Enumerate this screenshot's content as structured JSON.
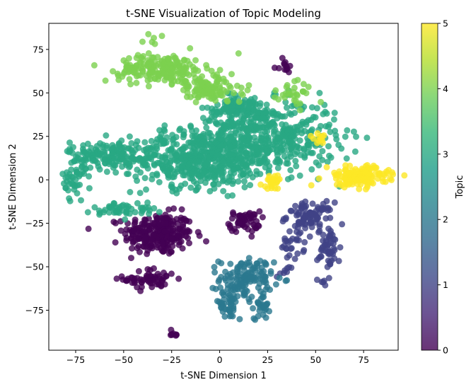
{
  "chart_data": {
    "type": "scatter",
    "title": "t-SNE Visualization of Topic Modeling",
    "xlabel": "t-SNE Dimension 1",
    "ylabel": "t-SNE Dimension 2",
    "xlim": [
      -89,
      93
    ],
    "ylim": [
      -98,
      90
    ],
    "xticks": [
      -75,
      -50,
      -25,
      0,
      25,
      50,
      75
    ],
    "yticks": [
      -75,
      -50,
      -25,
      0,
      25,
      50,
      75
    ],
    "grid": false,
    "colormap": "viridis",
    "point_alpha": 0.8,
    "colorbar": {
      "label": "Topic",
      "range": [
        0,
        5
      ],
      "ticks": [
        0,
        1,
        2,
        3,
        4,
        5
      ]
    },
    "clusters": [
      {
        "topic": 0,
        "center": [
          -32,
          -31
        ],
        "spread": [
          9,
          6
        ],
        "count": 260
      },
      {
        "topic": 0,
        "center": [
          -36,
          -57
        ],
        "spread": [
          7,
          3
        ],
        "count": 60
      },
      {
        "topic": 0,
        "center": [
          -24,
          -89
        ],
        "spread": [
          1.5,
          1.5
        ],
        "count": 8
      },
      {
        "topic": 0,
        "center": [
          13,
          -24
        ],
        "spread": [
          4,
          3
        ],
        "count": 55
      },
      {
        "topic": 0,
        "center": [
          33,
          65
        ],
        "spread": [
          2.5,
          2
        ],
        "count": 12
      },
      {
        "topic": 1,
        "center": [
          47,
          -21
        ],
        "spread": [
          6,
          4
        ],
        "count": 90
      },
      {
        "topic": 1,
        "center": [
          57,
          -40
        ],
        "spread": [
          3,
          6
        ],
        "count": 50
      },
      {
        "topic": 1,
        "center": [
          38,
          -38
        ],
        "spread": [
          3,
          4
        ],
        "count": 25
      },
      {
        "topic": 1,
        "center": [
          34,
          -52
        ],
        "spread": [
          2,
          2
        ],
        "count": 8
      },
      {
        "topic": 1,
        "center": [
          53,
          -58
        ],
        "spread": [
          1.5,
          1.5
        ],
        "count": 5
      },
      {
        "topic": 2,
        "center": [
          14,
          -57
        ],
        "spread": [
          7,
          6
        ],
        "count": 130
      },
      {
        "topic": 2,
        "center": [
          4,
          -72
        ],
        "spread": [
          4,
          4
        ],
        "count": 40
      },
      {
        "topic": 2,
        "center": [
          22,
          -72
        ],
        "spread": [
          2,
          4
        ],
        "count": 25
      },
      {
        "topic": 3,
        "center": [
          -10,
          12
        ],
        "spread": [
          18,
          8
        ],
        "count": 550
      },
      {
        "topic": 3,
        "center": [
          25,
          25
        ],
        "spread": [
          18,
          10
        ],
        "count": 450
      },
      {
        "topic": 3,
        "center": [
          -60,
          14
        ],
        "spread": [
          9,
          4
        ],
        "count": 140
      },
      {
        "topic": 3,
        "center": [
          -76,
          0
        ],
        "spread": [
          3,
          6
        ],
        "count": 40
      },
      {
        "topic": 3,
        "center": [
          -50,
          -17
        ],
        "spread": [
          8,
          2
        ],
        "count": 50
      },
      {
        "topic": 3,
        "center": [
          10,
          40
        ],
        "spread": [
          10,
          4
        ],
        "count": 120
      },
      {
        "topic": 4,
        "center": [
          -30,
          64
        ],
        "spread": [
          11,
          4
        ],
        "count": 200
      },
      {
        "topic": 4,
        "center": [
          -6,
          52
        ],
        "spread": [
          9,
          4
        ],
        "count": 110
      },
      {
        "topic": 4,
        "center": [
          40,
          50
        ],
        "spread": [
          5,
          4
        ],
        "count": 30
      },
      {
        "topic": 4,
        "center": [
          -34,
          79
        ],
        "spread": [
          2,
          2
        ],
        "count": 6
      },
      {
        "topic": 5,
        "center": [
          72,
          2
        ],
        "spread": [
          8,
          3
        ],
        "count": 140
      },
      {
        "topic": 5,
        "center": [
          28,
          -1
        ],
        "spread": [
          3,
          2
        ],
        "count": 25
      },
      {
        "topic": 5,
        "center": [
          53,
          24
        ],
        "spread": [
          2,
          1.5
        ],
        "count": 12
      }
    ]
  }
}
